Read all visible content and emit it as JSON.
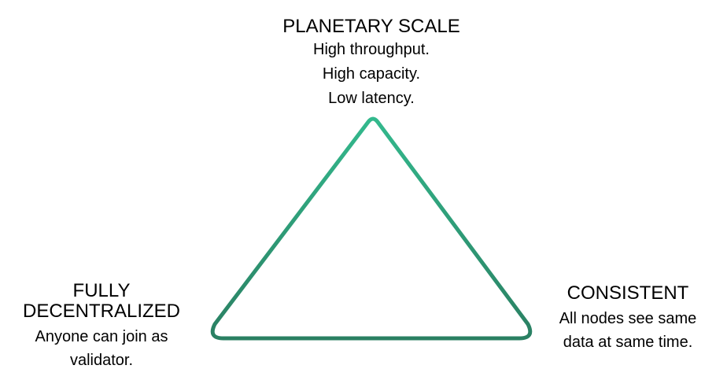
{
  "diagram": {
    "top": {
      "heading": "PLANETARY SCALE",
      "lines": [
        "High throughput.",
        "High capacity.",
        "Low latency."
      ]
    },
    "left": {
      "heading_lines": [
        "FULLY",
        "DECENTRALIZED"
      ],
      "lines": [
        "Anyone can join as",
        "validator."
      ]
    },
    "right": {
      "heading": "CONSISTENT",
      "lines": [
        "All nodes see same",
        "data at same time."
      ]
    }
  },
  "colors": {
    "triangle_stroke_top": "#33b98d",
    "triangle_stroke_bottom": "#2a7f62"
  }
}
